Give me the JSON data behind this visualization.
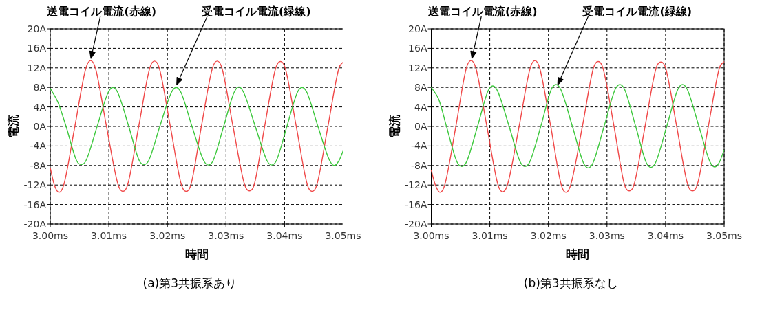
{
  "chart_data": [
    {
      "type": "line",
      "xlabel": "時間",
      "ylabel": "電流",
      "xlim": [
        3.0,
        3.05
      ],
      "ylim": [
        -20,
        20
      ],
      "xticks": [
        {
          "value": 3.0,
          "label": "3.00ms"
        },
        {
          "value": 3.01,
          "label": "3.01ms"
        },
        {
          "value": 3.02,
          "label": "3.02ms"
        },
        {
          "value": 3.03,
          "label": "3.03ms"
        },
        {
          "value": 3.04,
          "label": "3.04ms"
        },
        {
          "value": 3.05,
          "label": "3.05ms"
        }
      ],
      "yticks": [
        {
          "value": 20,
          "label": "20A"
        },
        {
          "value": 16,
          "label": "16A"
        },
        {
          "value": 12,
          "label": "12A"
        },
        {
          "value": 8,
          "label": "8A"
        },
        {
          "value": 4,
          "label": "4A"
        },
        {
          "value": 0,
          "label": "0A"
        },
        {
          "value": -4,
          "label": "-4A"
        },
        {
          "value": -8,
          "label": "-8A"
        },
        {
          "value": -12,
          "label": "-12A"
        },
        {
          "value": -16,
          "label": "-16A"
        },
        {
          "value": -20,
          "label": "-20A"
        }
      ],
      "grid": true,
      "line_style": "solid",
      "marker": "none",
      "series": [
        {
          "color": "#f04848",
          "x": [
            3.0,
            3.0007,
            3.0015,
            3.0023,
            3.0042,
            3.0061,
            3.0069,
            3.0077,
            3.0096,
            3.0116,
            3.0124,
            3.0132,
            3.0151,
            3.017,
            3.0178,
            3.0186,
            3.0205,
            3.0224,
            3.0232,
            3.024,
            3.0258,
            3.0277,
            3.0285,
            3.0293,
            3.0312,
            3.0332,
            3.034,
            3.0348,
            3.0366,
            3.0385,
            3.0393,
            3.0401,
            3.042,
            3.0439,
            3.0447,
            3.0455,
            3.0474,
            3.0493,
            3.05
          ],
          "values": [
            -8.5,
            -12,
            -13.5,
            -12,
            0,
            12,
            13.5,
            12,
            0,
            -12,
            -13.3,
            -12,
            0,
            12,
            13.4,
            12,
            0,
            -12,
            -13.3,
            -12,
            0,
            12,
            13.4,
            12,
            0,
            -12,
            -13.2,
            -12,
            0,
            12,
            13.3,
            12,
            0,
            -12,
            -13.3,
            -12,
            0,
            12,
            13.2
          ]
        },
        {
          "color": "#3cc83c",
          "x": [
            3.0,
            3.0013,
            3.0027,
            3.0045,
            3.0053,
            3.0061,
            3.008,
            3.0099,
            3.0107,
            3.0115,
            3.0134,
            3.0152,
            3.016,
            3.0168,
            3.0187,
            3.0207,
            3.0215,
            3.0223,
            3.0242,
            3.0262,
            3.027,
            3.0278,
            3.0296,
            3.0314,
            3.0322,
            3.033,
            3.035,
            3.037,
            3.0378,
            3.0386,
            3.0404,
            3.0422,
            3.043,
            3.0438,
            3.0457,
            3.0477,
            3.0485,
            3.0493,
            3.05
          ],
          "values": [
            7.8,
            5,
            0,
            -7,
            -7.8,
            -7,
            0,
            7,
            8,
            7,
            0,
            -7,
            -7.8,
            -7,
            0,
            7,
            8,
            7,
            0,
            -7,
            -7.9,
            -7,
            0,
            7,
            8.1,
            7,
            0,
            -7,
            -7.9,
            -7,
            0,
            7,
            8,
            7,
            0,
            -7,
            -8,
            -7,
            -5
          ]
        }
      ],
      "annotations": [
        "送電コイル電流(赤線)",
        "受電コイル電流(緑線)",
        "(a)第3共振系あり"
      ]
    },
    {
      "type": "line",
      "xlabel": "時間",
      "ylabel": "電流",
      "xlim": [
        3.0,
        3.05
      ],
      "ylim": [
        -20,
        20
      ],
      "xticks": [
        {
          "value": 3.0,
          "label": "3.00ms"
        },
        {
          "value": 3.01,
          "label": "3.01ms"
        },
        {
          "value": 3.02,
          "label": "3.02ms"
        },
        {
          "value": 3.03,
          "label": "3.03ms"
        },
        {
          "value": 3.04,
          "label": "3.04ms"
        },
        {
          "value": 3.05,
          "label": "3.05ms"
        }
      ],
      "yticks": [
        {
          "value": 20,
          "label": "20A"
        },
        {
          "value": 16,
          "label": "16A"
        },
        {
          "value": 12,
          "label": "12A"
        },
        {
          "value": 8,
          "label": "8A"
        },
        {
          "value": 4,
          "label": "4A"
        },
        {
          "value": 0,
          "label": "0A"
        },
        {
          "value": -4,
          "label": "-4A"
        },
        {
          "value": -8,
          "label": "-8A"
        },
        {
          "value": -12,
          "label": "-12A"
        },
        {
          "value": -16,
          "label": "-16A"
        },
        {
          "value": -20,
          "label": "-20A"
        }
      ],
      "grid": true,
      "line_style": "solid",
      "marker": "none",
      "series": [
        {
          "color": "#f04848",
          "x": [
            3.0,
            3.0007,
            3.0015,
            3.0023,
            3.0042,
            3.006,
            3.0068,
            3.0076,
            3.0095,
            3.0114,
            3.0122,
            3.013,
            3.015,
            3.0169,
            3.0177,
            3.0185,
            3.0204,
            3.0222,
            3.023,
            3.0238,
            3.0258,
            3.0277,
            3.0285,
            3.0293,
            3.0312,
            3.033,
            3.0338,
            3.0346,
            3.0365,
            3.0384,
            3.0392,
            3.04,
            3.0419,
            3.0438,
            3.0446,
            3.0454,
            3.0473,
            3.0492,
            3.05
          ],
          "values": [
            -9,
            -12,
            -13.5,
            -12,
            0,
            12,
            13.5,
            12,
            0,
            -12,
            -13.4,
            -12,
            0,
            12,
            13.5,
            12,
            0,
            -12,
            -13.5,
            -12,
            0,
            12,
            13.3,
            12,
            0,
            -12,
            -13.2,
            -12,
            0,
            12,
            13.2,
            12,
            0,
            -12,
            -13.2,
            -12,
            0,
            12,
            13.3
          ]
        },
        {
          "color": "#3cc83c",
          "x": [
            3.0,
            3.0013,
            3.0026,
            3.0044,
            3.0052,
            3.006,
            3.0079,
            3.0097,
            3.0105,
            3.0113,
            3.0133,
            3.0152,
            3.016,
            3.0168,
            3.0187,
            3.0205,
            3.0213,
            3.0221,
            3.0241,
            3.026,
            3.0268,
            3.0276,
            3.0295,
            3.0314,
            3.0322,
            3.033,
            3.0349,
            3.0367,
            3.0375,
            3.0383,
            3.0402,
            3.0421,
            3.0429,
            3.0437,
            3.0457,
            3.0476,
            3.0484,
            3.0492,
            3.05
          ],
          "values": [
            8,
            5.5,
            0,
            -7.3,
            -8.2,
            -7.3,
            0,
            7.3,
            8.3,
            7.3,
            0,
            -7.3,
            -8.2,
            -7.3,
            0,
            7.6,
            8.6,
            7.6,
            0,
            -7.5,
            -8.5,
            -7.5,
            0,
            7.6,
            8.6,
            7.6,
            0,
            -7.4,
            -8.4,
            -7.4,
            0,
            7.6,
            8.6,
            7.6,
            0,
            -7.3,
            -8.3,
            -7.3,
            -4.8
          ]
        }
      ],
      "annotations": [
        "送電コイル電流(赤線)",
        "受電コイル電流(緑線)",
        "(b)第3共振系なし"
      ]
    }
  ]
}
